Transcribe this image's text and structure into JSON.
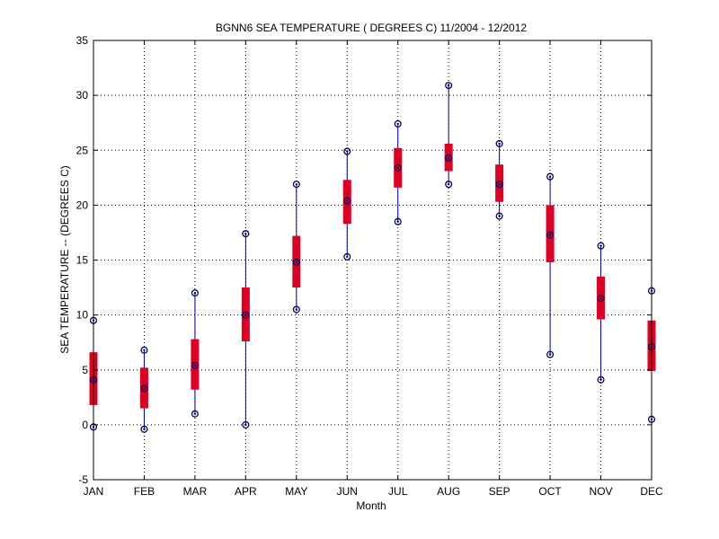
{
  "chart_data": {
    "type": "box",
    "title": "BGNN6  SEA TEMPERATURE ( DEGREES C) 11/2004 - 12/2012",
    "xlabel": "Month",
    "ylabel": "SEA TEMPERATURE -- (DEGREES C)",
    "ylim": [
      -5,
      35
    ],
    "yticks": [
      -5,
      0,
      5,
      10,
      15,
      20,
      25,
      30,
      35
    ],
    "grid": true,
    "categories": [
      "JAN",
      "FEB",
      "MAR",
      "APR",
      "MAY",
      "JUN",
      "JUL",
      "AUG",
      "SEP",
      "OCT",
      "NOV",
      "DEC"
    ],
    "min": [
      -0.2,
      -0.4,
      1.0,
      0.0,
      10.5,
      15.3,
      18.5,
      21.9,
      19.0,
      6.4,
      4.1,
      0.5
    ],
    "q1": [
      1.8,
      1.5,
      3.2,
      7.6,
      12.5,
      18.3,
      21.6,
      23.1,
      20.3,
      14.8,
      9.6,
      4.9
    ],
    "median": [
      4.1,
      3.3,
      5.4,
      10.0,
      14.8,
      20.4,
      23.4,
      24.3,
      21.9,
      17.3,
      11.5,
      7.1
    ],
    "q3": [
      6.6,
      5.2,
      7.8,
      12.5,
      17.2,
      22.3,
      25.2,
      25.6,
      23.7,
      20.0,
      13.5,
      9.5
    ],
    "max": [
      9.5,
      6.8,
      12.0,
      17.4,
      21.9,
      24.9,
      27.4,
      30.9,
      25.6,
      22.6,
      16.3,
      12.2
    ],
    "colors": {
      "box": "#dd0022",
      "whisker": "#0000aa",
      "marker": "#000066",
      "grid": "#000000",
      "axis": "#000000"
    }
  }
}
